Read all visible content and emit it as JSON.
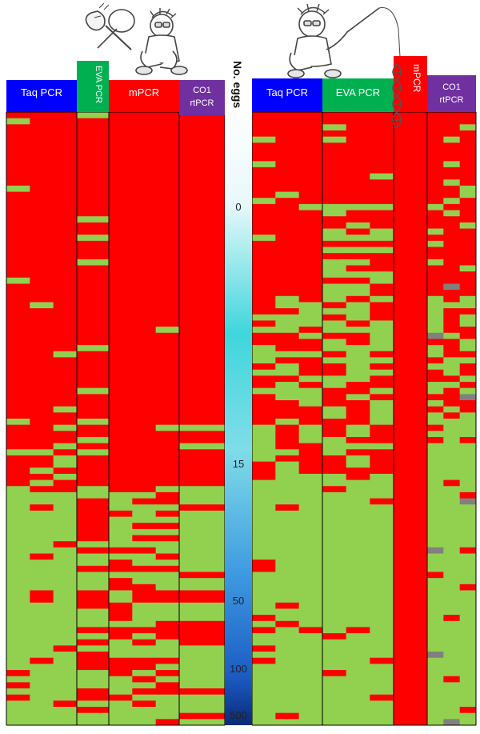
{
  "chart_data": {
    "type": "heatmap",
    "title": "",
    "colors": {
      "positive": "#ff0000",
      "negative": "#92d050",
      "missing": "#808080",
      "grid": "#000000",
      "scale_top": "#ffffff",
      "scale_mid": "#3fd6dc",
      "scale_bottom": "#0a2a78"
    },
    "scale": {
      "label": "No. eggs",
      "ticks": [
        "0",
        "15",
        "50",
        "100",
        "500"
      ]
    },
    "panels": [
      {
        "name": "left",
        "icon": "cartoon-scientist-with-net-icon",
        "columns": [
          {
            "label": "Taq PCR",
            "color": "#0000ff"
          },
          {
            "label": "EVA PCR",
            "color": "#00b050"
          },
          {
            "label": "mPCR",
            "color": "#ff0000"
          },
          {
            "label": "CO1 rtPCR",
            "color": "#7030a0"
          }
        ]
      },
      {
        "name": "right",
        "icon": "cartoon-scientist-fishing-dna-icon",
        "columns": [
          {
            "label": "Taq PCR",
            "color": "#0000ff"
          },
          {
            "label": "EVA PCR",
            "color": "#00b050"
          },
          {
            "label": "mPCR",
            "color": "#ff0000"
          },
          {
            "label": "CO1 rtPCR",
            "color": "#7030a0"
          }
        ]
      }
    ],
    "legend": [
      {
        "label": "",
        "value": "positive"
      },
      {
        "label": "",
        "value": "negative"
      },
      {
        "label": "",
        "value": "missing"
      }
    ]
  }
}
